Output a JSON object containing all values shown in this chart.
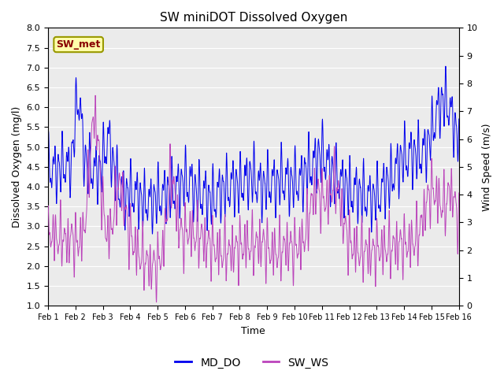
{
  "title": "SW miniDOT Dissolved Oxygen",
  "xlabel": "Time",
  "ylabel_left": "Dissolved Oxygen (mg/l)",
  "ylabel_right": "Wind Speed (m/s)",
  "ylim_left": [
    1.0,
    8.0
  ],
  "ylim_right": [
    0.0,
    10.0
  ],
  "yticks_left": [
    1.0,
    1.5,
    2.0,
    2.5,
    3.0,
    3.5,
    4.0,
    4.5,
    5.0,
    5.5,
    6.0,
    6.5,
    7.0,
    7.5,
    8.0
  ],
  "yticks_right": [
    0.0,
    1.0,
    2.0,
    3.0,
    4.0,
    5.0,
    6.0,
    7.0,
    8.0,
    9.0,
    10.0
  ],
  "xtick_labels": [
    "Feb 1",
    "Feb 2",
    "Feb 3",
    "Feb 4",
    "Feb 5",
    "Feb 6",
    "Feb 7",
    "Feb 8",
    "Feb 9",
    "Feb 10",
    "Feb 11",
    "Feb 12",
    "Feb 13",
    "Feb 14",
    "Feb 15",
    "Feb 16"
  ],
  "color_do": "#0000EE",
  "color_ws": "#BB44BB",
  "legend_label_do": "MD_DO",
  "legend_label_ws": "SW_WS",
  "annotation_text": "SW_met",
  "annotation_color": "#880000",
  "annotation_bg": "#FFFFAA",
  "annotation_border": "#999900",
  "background_color": "#EBEBEB",
  "grid_color": "#FFFFFF",
  "n_points": 3000,
  "seed": 7
}
